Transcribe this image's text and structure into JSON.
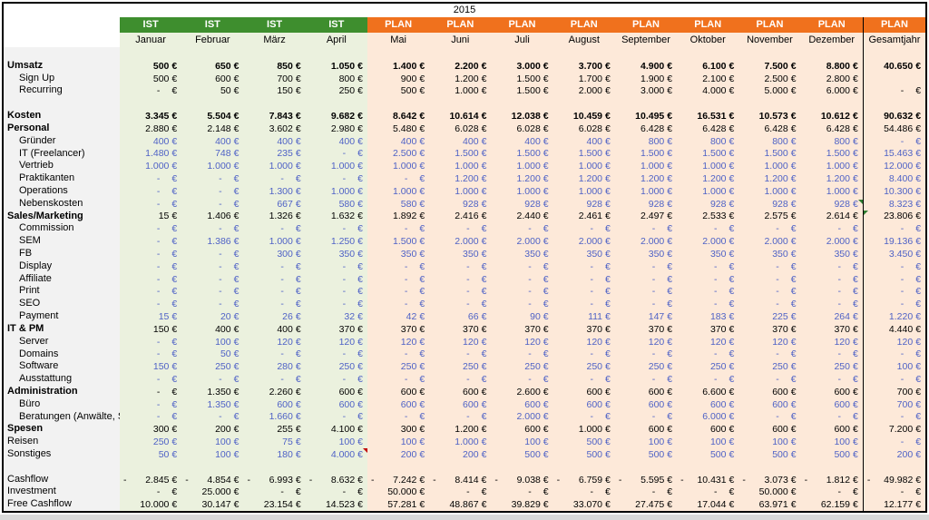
{
  "title": "2015",
  "currency": "€",
  "colors": {
    "ist_header": "#3e8e2e",
    "plan_header": "#f0711d",
    "ist_bg": "#ebf1de",
    "plan_bg": "#fde9d9",
    "label_bg": "#f2f2f2",
    "value_blue": "#4f62c6",
    "value_black": "#000000",
    "header_text": "#ffffff"
  },
  "header": {
    "band": [
      "IST",
      "IST",
      "IST",
      "IST",
      "PLAN",
      "PLAN",
      "PLAN",
      "PLAN",
      "PLAN",
      "PLAN",
      "PLAN",
      "PLAN",
      "PLAN"
    ],
    "months": [
      "Januar",
      "Februar",
      "März",
      "April",
      "Mai",
      "Juni",
      "Juli",
      "August",
      "September",
      "Oktober",
      "November",
      "Dezember",
      "Gesamtjahr"
    ]
  },
  "rows": [
    {
      "spacer": true
    },
    {
      "label": "Umsatz",
      "indent": 0,
      "bold": true,
      "vs": "bold",
      "values": [
        "500",
        "650",
        "850",
        "1.050",
        "1.400",
        "2.200",
        "3.000",
        "3.700",
        "4.900",
        "6.100",
        "7.500",
        "8.800",
        "40.650"
      ]
    },
    {
      "label": "Sign Up",
      "indent": 1,
      "bold": false,
      "vs": "black",
      "values": [
        "500",
        "600",
        "700",
        "800",
        "900",
        "1.200",
        "1.500",
        "1.700",
        "1.900",
        "2.100",
        "2.500",
        "2.800",
        ""
      ]
    },
    {
      "label": "Recurring",
      "indent": 1,
      "bold": false,
      "vs": "black",
      "values": [
        "-",
        "50",
        "150",
        "250",
        "500",
        "1.000",
        "1.500",
        "2.000",
        "3.000",
        "4.000",
        "5.000",
        "6.000",
        "-"
      ]
    },
    {
      "spacer": true
    },
    {
      "label": "Kosten",
      "indent": 0,
      "bold": true,
      "vs": "bold",
      "values": [
        "3.345",
        "5.504",
        "7.843",
        "9.682",
        "8.642",
        "10.614",
        "12.038",
        "10.459",
        "10.495",
        "16.531",
        "10.573",
        "10.612",
        "90.632"
      ]
    },
    {
      "label": "Personal",
      "indent": 0,
      "bold": true,
      "vs": "black",
      "values": [
        "2.880",
        "2.148",
        "3.602",
        "2.980",
        "5.480",
        "6.028",
        "6.028",
        "6.028",
        "6.428",
        "6.428",
        "6.428",
        "6.428",
        "54.486"
      ]
    },
    {
      "label": "Gründer",
      "indent": 1,
      "bold": false,
      "vs": "blue",
      "values": [
        "400",
        "400",
        "400",
        "400",
        "400",
        "400",
        "400",
        "400",
        "800",
        "800",
        "800",
        "800",
        "-"
      ]
    },
    {
      "label": "IT (Freelancer)",
      "indent": 1,
      "bold": false,
      "vs": "blue",
      "values": [
        "1.480",
        "748",
        "235",
        "-",
        "2.500",
        "1.500",
        "1.500",
        "1.500",
        "1.500",
        "1.500",
        "1.500",
        "1.500",
        "15.463"
      ]
    },
    {
      "label": "Vertrieb",
      "indent": 1,
      "bold": false,
      "vs": "blue",
      "values": [
        "1.000",
        "1.000",
        "1.000",
        "1.000",
        "1.000",
        "1.000",
        "1.000",
        "1.000",
        "1.000",
        "1.000",
        "1.000",
        "1.000",
        "12.000"
      ]
    },
    {
      "label": "Praktikanten",
      "indent": 1,
      "bold": false,
      "vs": "blue",
      "values": [
        "-",
        "-",
        "-",
        "-",
        "-",
        "1.200",
        "1.200",
        "1.200",
        "1.200",
        "1.200",
        "1.200",
        "1.200",
        "8.400"
      ]
    },
    {
      "label": "Operations",
      "indent": 1,
      "bold": false,
      "vs": "blue",
      "values": [
        "-",
        "-",
        "1.300",
        "1.000",
        "1.000",
        "1.000",
        "1.000",
        "1.000",
        "1.000",
        "1.000",
        "1.000",
        "1.000",
        "10.300"
      ]
    },
    {
      "label": "Nebenskosten",
      "indent": 1,
      "bold": false,
      "vs": "blue",
      "values": [
        "-",
        "-",
        "667",
        "580",
        "580",
        "928",
        "928",
        "928",
        "928",
        "928",
        "928",
        "928",
        "8.323"
      ],
      "markers": [
        {
          "col": 11,
          "type": "tri-green-tr"
        }
      ]
    },
    {
      "label": "Sales/Marketing",
      "indent": 0,
      "bold": true,
      "vs": "black",
      "values": [
        "15",
        "1.406",
        "1.326",
        "1.632",
        "1.892",
        "2.416",
        "2.440",
        "2.461",
        "2.497",
        "2.533",
        "2.575",
        "2.614",
        "23.806"
      ],
      "markers": [
        {
          "col": 12,
          "type": "tri-green-tl"
        }
      ]
    },
    {
      "label": "Commission",
      "indent": 1,
      "bold": false,
      "vs": "blue",
      "values": [
        "-",
        "-",
        "-",
        "-",
        "-",
        "-",
        "-",
        "-",
        "-",
        "-",
        "-",
        "-",
        "-"
      ]
    },
    {
      "label": "SEM",
      "indent": 1,
      "bold": false,
      "vs": "blue",
      "values": [
        "-",
        "1.386",
        "1.000",
        "1.250",
        "1.500",
        "2.000",
        "2.000",
        "2.000",
        "2.000",
        "2.000",
        "2.000",
        "2.000",
        "19.136"
      ]
    },
    {
      "label": "FB",
      "indent": 1,
      "bold": false,
      "vs": "blue",
      "values": [
        "-",
        "-",
        "300",
        "350",
        "350",
        "350",
        "350",
        "350",
        "350",
        "350",
        "350",
        "350",
        "3.450"
      ]
    },
    {
      "label": "Display",
      "indent": 1,
      "bold": false,
      "vs": "blue",
      "values": [
        "-",
        "-",
        "-",
        "-",
        "-",
        "-",
        "-",
        "-",
        "-",
        "-",
        "-",
        "-",
        "-"
      ]
    },
    {
      "label": "Affiliate",
      "indent": 1,
      "bold": false,
      "vs": "blue",
      "values": [
        "-",
        "-",
        "-",
        "-",
        "-",
        "-",
        "-",
        "-",
        "-",
        "-",
        "-",
        "-",
        "-"
      ]
    },
    {
      "label": "Print",
      "indent": 1,
      "bold": false,
      "vs": "blue",
      "values": [
        "-",
        "-",
        "-",
        "-",
        "-",
        "-",
        "-",
        "-",
        "-",
        "-",
        "-",
        "-",
        "-"
      ]
    },
    {
      "label": "SEO",
      "indent": 1,
      "bold": false,
      "vs": "blue",
      "values": [
        "-",
        "-",
        "-",
        "-",
        "-",
        "-",
        "-",
        "-",
        "-",
        "-",
        "-",
        "-",
        "-"
      ]
    },
    {
      "label": "Payment",
      "indent": 1,
      "bold": false,
      "vs": "blue",
      "values": [
        "15",
        "20",
        "26",
        "32",
        "42",
        "66",
        "90",
        "111",
        "147",
        "183",
        "225",
        "264",
        "1.220"
      ]
    },
    {
      "label": "IT & PM",
      "indent": 0,
      "bold": true,
      "vs": "black",
      "values": [
        "150",
        "400",
        "400",
        "370",
        "370",
        "370",
        "370",
        "370",
        "370",
        "370",
        "370",
        "370",
        "4.440"
      ]
    },
    {
      "label": "Server",
      "indent": 1,
      "bold": false,
      "vs": "blue",
      "values": [
        "-",
        "100",
        "120",
        "120",
        "120",
        "120",
        "120",
        "120",
        "120",
        "120",
        "120",
        "120",
        "120"
      ]
    },
    {
      "label": "Domains",
      "indent": 1,
      "bold": false,
      "vs": "blue",
      "values": [
        "-",
        "50",
        "-",
        "-",
        "-",
        "-",
        "-",
        "-",
        "-",
        "-",
        "-",
        "-",
        "-"
      ]
    },
    {
      "label": "Software",
      "indent": 1,
      "bold": false,
      "vs": "blue",
      "values": [
        "150",
        "250",
        "280",
        "250",
        "250",
        "250",
        "250",
        "250",
        "250",
        "250",
        "250",
        "250",
        "100"
      ]
    },
    {
      "label": "Ausstattung",
      "indent": 1,
      "bold": false,
      "vs": "blue",
      "values": [
        "-",
        "-",
        "-",
        "-",
        "-",
        "-",
        "-",
        "-",
        "-",
        "-",
        "-",
        "-",
        "-"
      ]
    },
    {
      "label": "Administration",
      "indent": 0,
      "bold": true,
      "vs": "black",
      "values": [
        "-",
        "1.350",
        "2.260",
        "600",
        "600",
        "600",
        "2.600",
        "600",
        "600",
        "6.600",
        "600",
        "600",
        "700"
      ]
    },
    {
      "label": "Büro",
      "indent": 1,
      "bold": false,
      "vs": "blue",
      "values": [
        "-",
        "1.350",
        "600",
        "600",
        "600",
        "600",
        "600",
        "600",
        "600",
        "600",
        "600",
        "600",
        "700"
      ]
    },
    {
      "label": "Beratungen (Anwälte, St",
      "indent": 1,
      "bold": false,
      "vs": "blue",
      "values": [
        "-",
        "-",
        "1.660",
        "-",
        "-",
        "-",
        "2.000",
        "-",
        "-",
        "6.000",
        "-",
        "-",
        "-"
      ]
    },
    {
      "label": "Spesen",
      "indent": 0,
      "bold": true,
      "vs": "black",
      "values": [
        "300",
        "200",
        "255",
        "4.100",
        "300",
        "1.200",
        "600",
        "1.000",
        "600",
        "600",
        "600",
        "600",
        "7.200"
      ]
    },
    {
      "label": "Reisen",
      "indent": 0,
      "bold": false,
      "vs": "blue",
      "values": [
        "250",
        "100",
        "75",
        "100",
        "100",
        "1.000",
        "100",
        "500",
        "100",
        "100",
        "100",
        "100",
        "-"
      ]
    },
    {
      "label": "Sonstiges",
      "indent": 0,
      "bold": false,
      "vs": "blue",
      "values": [
        "50",
        "100",
        "180",
        "4.000",
        "200",
        "200",
        "500",
        "500",
        "500",
        "500",
        "500",
        "500",
        "200"
      ],
      "markers": [
        {
          "col": 3,
          "type": "tri-red-tr"
        }
      ]
    },
    {
      "spacer": true
    },
    {
      "label": "Cashflow",
      "indent": 0,
      "bold": false,
      "vs": "black",
      "values": [
        "-2.845",
        "-4.854",
        "-6.993",
        "-8.632",
        "-7.242",
        "-8.414",
        "-9.038",
        "-6.759",
        "-5.595",
        "-10.431",
        "-3.073",
        "-1.812",
        "-49.982"
      ]
    },
    {
      "label": "Investment",
      "indent": 0,
      "bold": false,
      "vs": "black",
      "values": [
        "-",
        "25.000",
        "-",
        "-",
        "50.000",
        "-",
        "-",
        "-",
        "-",
        "-",
        "50.000",
        "-",
        "-"
      ]
    },
    {
      "label": "Free Cashflow",
      "indent": 0,
      "bold": false,
      "vs": "black",
      "values": [
        "10.000",
        "30.147",
        "23.154",
        "14.523",
        "57.281",
        "48.867",
        "39.829",
        "33.070",
        "27.475",
        "17.044",
        "63.971",
        "62.159",
        "12.177"
      ]
    }
  ]
}
